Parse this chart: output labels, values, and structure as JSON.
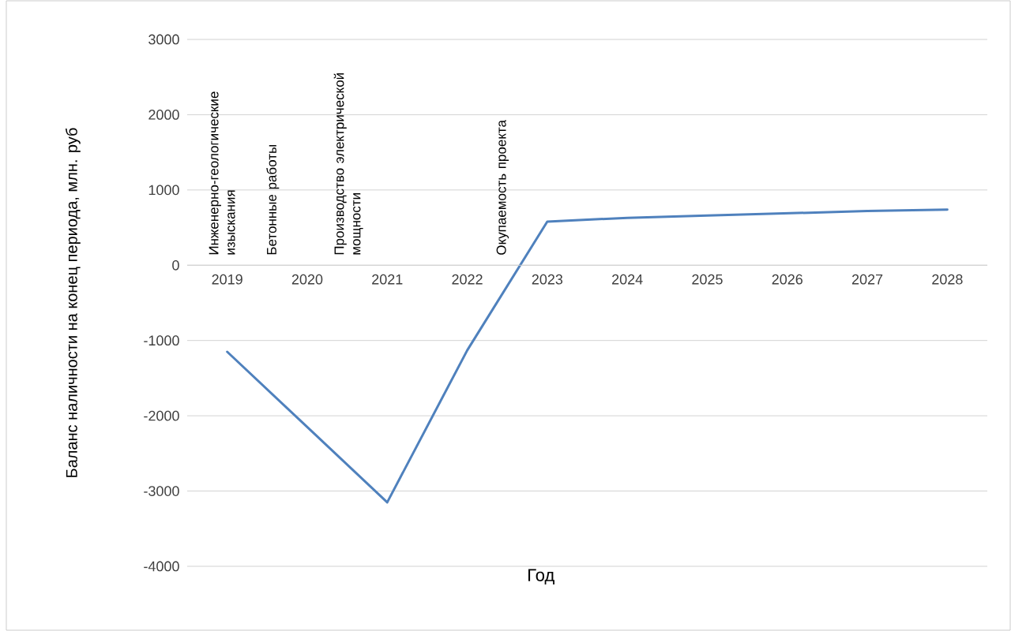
{
  "chart_data": {
    "type": "line",
    "xlabel": "Год",
    "ylabel": "Баланс наличности на конец периода, млн. руб",
    "categories": [
      "2019",
      "2020",
      "2021",
      "2022",
      "2023",
      "2024",
      "2025",
      "2026",
      "2027",
      "2028"
    ],
    "series": [
      {
        "color": "#4f81bd",
        "values": [
          -1150,
          -2150,
          -3150,
          -1130,
          580,
          630,
          660,
          690,
          720,
          740
        ]
      }
    ],
    "ylim": [
      -4000,
      3000
    ],
    "yticks": [
      -4000,
      -3000,
      -2000,
      -1000,
      0,
      1000,
      2000,
      3000
    ],
    "grid": "y",
    "marker": "none",
    "line_style": "solid",
    "annotations": [
      "Инженерно-геологические изыскания",
      "Бетонные работы",
      "Производство электрической мощности",
      "Окупаемость проекта"
    ]
  }
}
